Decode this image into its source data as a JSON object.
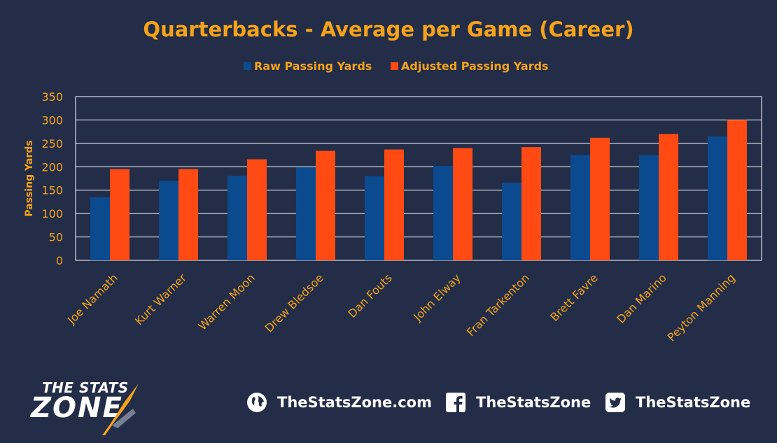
{
  "chart_data": {
    "type": "bar",
    "title": "Quarterbacks - Average per Game (Career)",
    "ylabel": "Passing Yards",
    "xlabel": "",
    "ylim": [
      0,
      350
    ],
    "yticks": [
      0,
      50,
      100,
      150,
      200,
      250,
      300,
      350
    ],
    "grid": true,
    "legend_position": "top-center",
    "categories": [
      "Joe Namath",
      "Kurt Warner",
      "Warren Moon",
      "Drew Bledsoe",
      "Dan Fouts",
      "John Elway",
      "Fran Tarkenton",
      "Brett Favre",
      "Dan Marino",
      "Peyton Manning"
    ],
    "series": [
      {
        "name": "Raw Passing Yards",
        "color": "#0b4a8f",
        "values": [
          135,
          170,
          181,
          199,
          180,
          202,
          166,
          225,
          225,
          265
        ]
      },
      {
        "name": "Adjusted Passing Yards",
        "color": "#ff4a14",
        "values": [
          195,
          195,
          216,
          234,
          237,
          240,
          242,
          262,
          270,
          300
        ]
      }
    ]
  },
  "colors": {
    "background": "#232d47",
    "accent": "#f5a31a",
    "grid": "#ffffff"
  },
  "footer": {
    "logo_top": "THE STATS",
    "logo_bottom": "ZONE",
    "website": "TheStatsZone.com",
    "facebook": "TheStatsZone",
    "twitter": "TheStatsZone",
    "icons": [
      "globe-icon",
      "facebook-icon",
      "twitter-icon"
    ]
  }
}
